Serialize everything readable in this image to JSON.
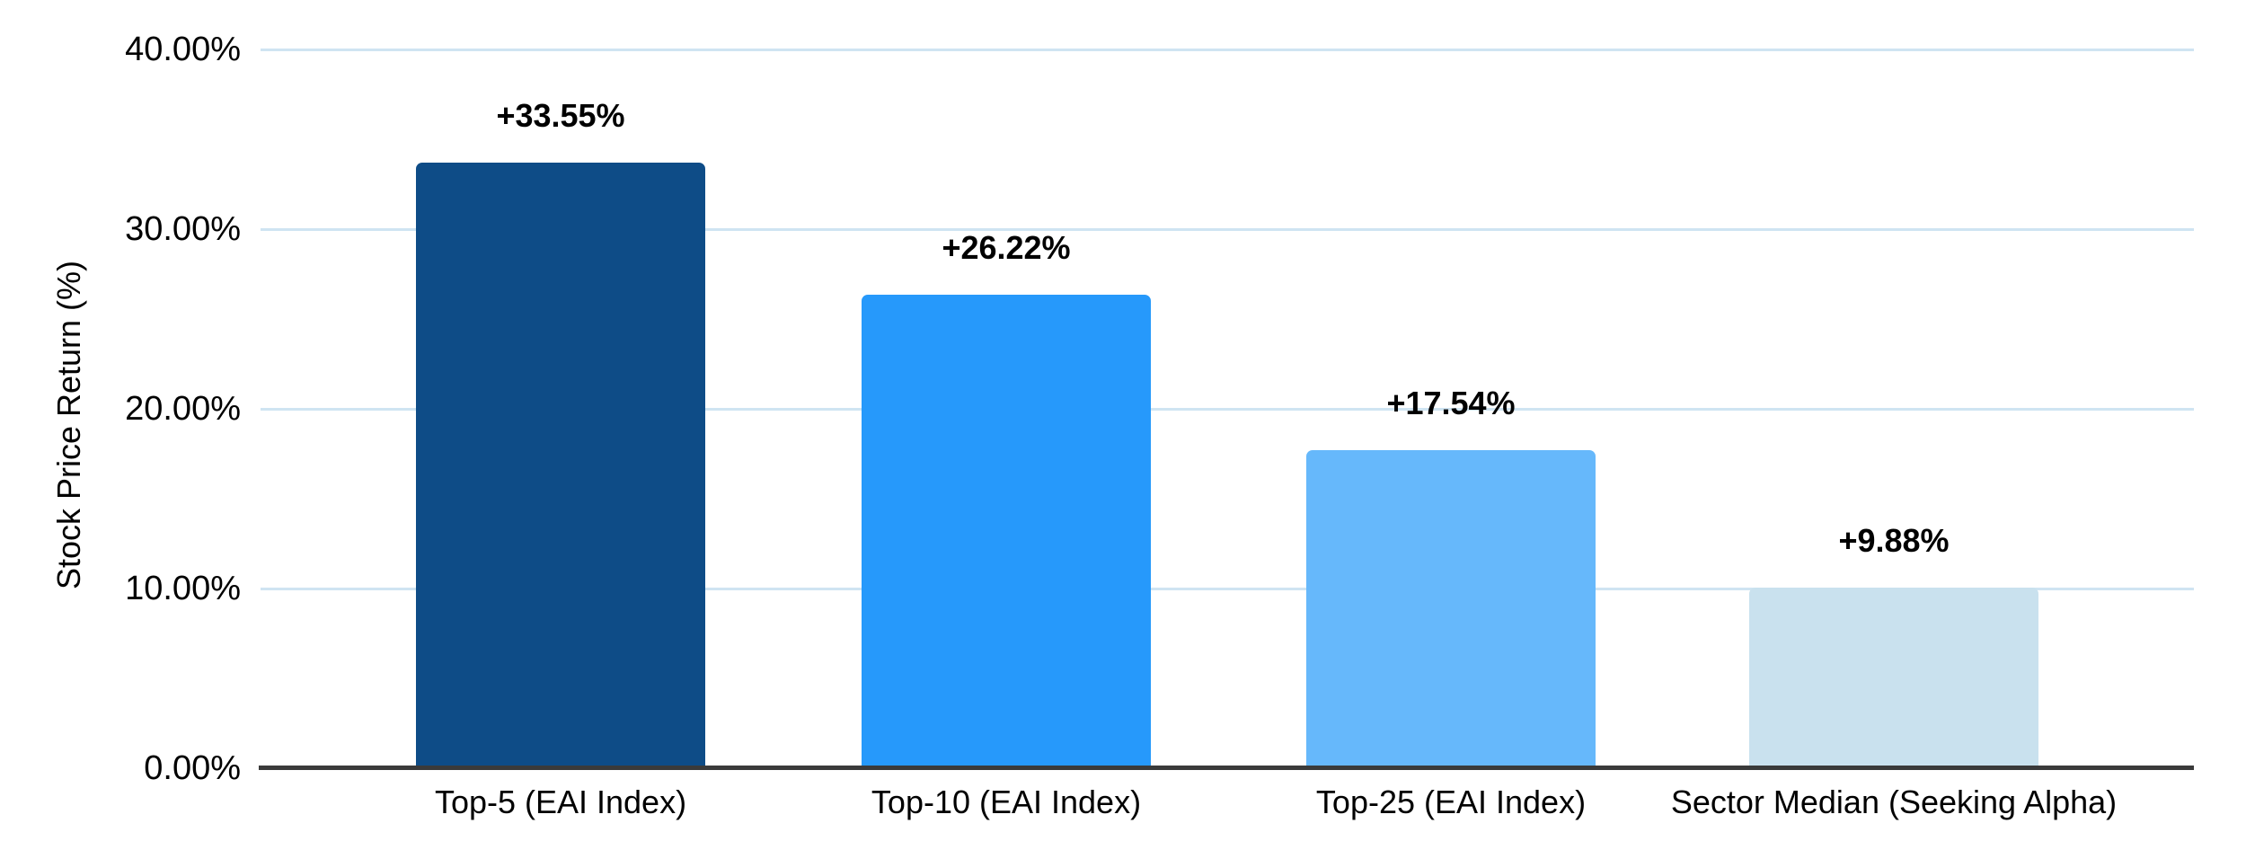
{
  "chart_data": {
    "type": "bar",
    "title": "",
    "xlabel": "",
    "ylabel": "Stock Price Return (%)",
    "ylim": [
      0,
      40
    ],
    "grid": true,
    "legend": "none",
    "yticks": [
      "40.00%",
      "30.00%",
      "20.00%",
      "10.00%",
      "0.00%"
    ],
    "ytick_values": [
      40,
      30,
      20,
      10,
      0
    ],
    "categories": [
      "Top-5 (EAI Index)",
      "Top-10 (EAI Index)",
      "Top-25 (EAI Index)",
      "Sector Median (Seeking Alpha)"
    ],
    "values": [
      33.55,
      26.22,
      17.54,
      9.88
    ],
    "value_labels": [
      "+33.55%",
      "+26.22%",
      "+17.54%",
      "+9.88%"
    ],
    "bar_colors": [
      "#0e4c87",
      "#2699fb",
      "#66b8fb",
      "#c9e1ee"
    ],
    "gridline_color": "#cfe4f2",
    "axis_color": "#3a3a3a",
    "label_color": "#000000"
  }
}
